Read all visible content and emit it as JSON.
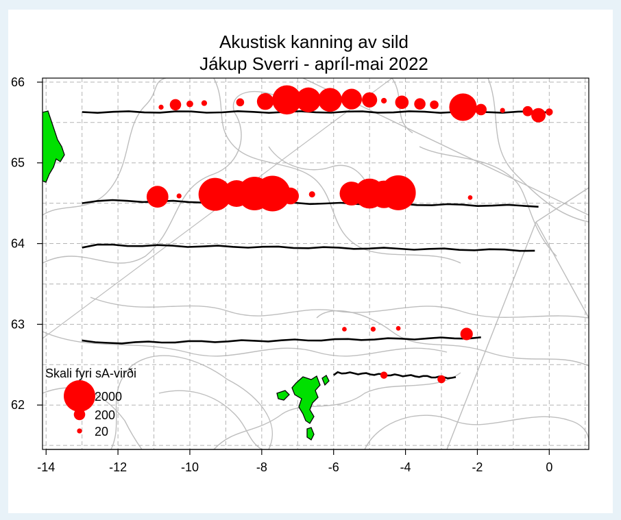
{
  "chart_data": {
    "type": "scatter",
    "title": "Akustisk kanning av sild",
    "subtitle": "Jákup Sverri - apríl-mai 2022",
    "xlim": [
      -14.1,
      1.1
    ],
    "ylim": [
      61.45,
      66.05
    ],
    "x_ticks": [
      "-14",
      "-12",
      "-10",
      "-8",
      "-6",
      "-4",
      "-2",
      "0"
    ],
    "y_ticks": [
      "62",
      "63",
      "64",
      "65",
      "66"
    ],
    "grid": true,
    "legend": {
      "title": "Skali fyri sA-virði",
      "placement": "bottom-left",
      "entries": [
        {
          "label": "2000",
          "value": 2000
        },
        {
          "label": "200",
          "value": 200
        },
        {
          "label": "20",
          "value": 20
        }
      ]
    },
    "colors": {
      "points": "#ff0000",
      "transect": "#000000",
      "land": "#00e000",
      "land_outline": "#000000",
      "grid": "#b3b3b3",
      "depth_contours": "#bdbdbd"
    },
    "transects": [
      {
        "lat": 65.63,
        "lon": [
          -13.0,
          0.0
        ]
      },
      {
        "lat": 64.5,
        "lon": [
          -13.0,
          -0.3
        ]
      },
      {
        "lat": 63.95,
        "lon": [
          -13.0,
          -0.4
        ]
      },
      {
        "lat": 62.8,
        "lon": [
          -13.0,
          -1.9
        ]
      },
      {
        "lat": 62.37,
        "lon": [
          -6.0,
          -2.6
        ]
      }
    ],
    "points": [
      {
        "lon": -10.8,
        "lat": 65.69,
        "sa": 20
      },
      {
        "lon": -10.4,
        "lat": 65.72,
        "sa": 200
      },
      {
        "lon": -10.0,
        "lat": 65.73,
        "sa": 50
      },
      {
        "lon": -9.6,
        "lat": 65.74,
        "sa": 30
      },
      {
        "lon": -8.6,
        "lat": 65.75,
        "sa": 80
      },
      {
        "lon": -7.9,
        "lat": 65.76,
        "sa": 500
      },
      {
        "lon": -7.3,
        "lat": 65.78,
        "sa": 1700
      },
      {
        "lon": -6.7,
        "lat": 65.78,
        "sa": 1200
      },
      {
        "lon": -6.1,
        "lat": 65.78,
        "sa": 1100
      },
      {
        "lon": -5.5,
        "lat": 65.79,
        "sa": 800
      },
      {
        "lon": -5.0,
        "lat": 65.78,
        "sa": 400
      },
      {
        "lon": -4.6,
        "lat": 65.77,
        "sa": 30
      },
      {
        "lon": -4.1,
        "lat": 65.75,
        "sa": 300
      },
      {
        "lon": -3.6,
        "lat": 65.73,
        "sa": 200
      },
      {
        "lon": -3.2,
        "lat": 65.72,
        "sa": 100
      },
      {
        "lon": -2.4,
        "lat": 65.69,
        "sa": 1500
      },
      {
        "lon": -1.9,
        "lat": 65.66,
        "sa": 200
      },
      {
        "lon": -1.3,
        "lat": 65.65,
        "sa": 20
      },
      {
        "lon": -0.6,
        "lat": 65.64,
        "sa": 150
      },
      {
        "lon": -0.3,
        "lat": 65.59,
        "sa": 350
      },
      {
        "lon": 0.0,
        "lat": 65.63,
        "sa": 60
      },
      {
        "lon": -10.9,
        "lat": 64.58,
        "sa": 900
      },
      {
        "lon": -10.3,
        "lat": 64.59,
        "sa": 20
      },
      {
        "lon": -9.3,
        "lat": 64.61,
        "sa": 2200
      },
      {
        "lon": -8.7,
        "lat": 64.62,
        "sa": 1400
      },
      {
        "lon": -8.2,
        "lat": 64.62,
        "sa": 2300
      },
      {
        "lon": -7.7,
        "lat": 64.62,
        "sa": 2600
      },
      {
        "lon": -7.2,
        "lat": 64.59,
        "sa": 500
      },
      {
        "lon": -6.6,
        "lat": 64.61,
        "sa": 40
      },
      {
        "lon": -5.5,
        "lat": 64.62,
        "sa": 1100
      },
      {
        "lon": -5.0,
        "lat": 64.62,
        "sa": 1800
      },
      {
        "lon": -4.6,
        "lat": 64.61,
        "sa": 1500
      },
      {
        "lon": -4.2,
        "lat": 64.63,
        "sa": 2500
      },
      {
        "lon": -2.2,
        "lat": 64.57,
        "sa": 15
      },
      {
        "lon": -5.7,
        "lat": 62.94,
        "sa": 15
      },
      {
        "lon": -4.9,
        "lat": 62.94,
        "sa": 20
      },
      {
        "lon": -4.2,
        "lat": 62.95,
        "sa": 15
      },
      {
        "lon": -2.3,
        "lat": 62.88,
        "sa": 250
      },
      {
        "lon": -4.6,
        "lat": 62.37,
        "sa": 60
      },
      {
        "lon": -3.0,
        "lat": 62.32,
        "sa": 80
      }
    ]
  }
}
